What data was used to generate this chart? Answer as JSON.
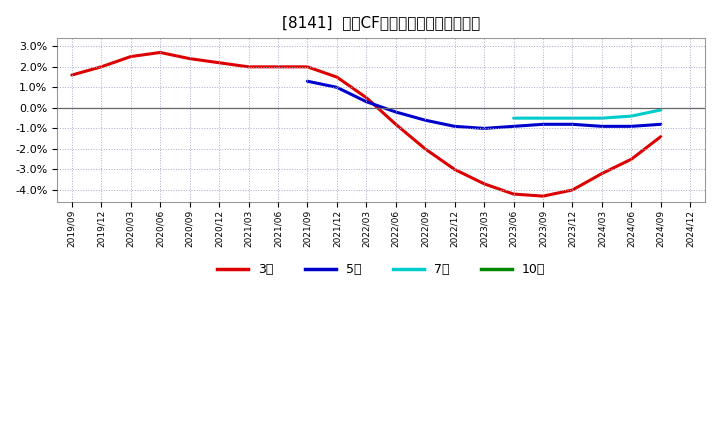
{
  "title": "[8141]  営業CFマージンの平均値の推移",
  "ylim": [
    -0.046,
    0.034
  ],
  "yticks": [
    -0.04,
    -0.03,
    -0.02,
    -0.01,
    0.0,
    0.01,
    0.02,
    0.03
  ],
  "background_color": "#ffffff",
  "plot_bg_color": "#ffffff",
  "grid_color": "#aaaacc",
  "series": {
    "3year": {
      "color": "#dd0000",
      "label": "3年",
      "points": [
        [
          0,
          0.016
        ],
        [
          1,
          0.02
        ],
        [
          2,
          0.025
        ],
        [
          3,
          0.027
        ],
        [
          4,
          0.024
        ],
        [
          5,
          0.022
        ],
        [
          6,
          0.02
        ],
        [
          7,
          0.02
        ],
        [
          8,
          0.02
        ],
        [
          9,
          0.015
        ],
        [
          10,
          0.005
        ],
        [
          11,
          -0.008
        ],
        [
          12,
          -0.02
        ],
        [
          13,
          -0.03
        ],
        [
          14,
          -0.037
        ],
        [
          15,
          -0.042
        ],
        [
          16,
          -0.043
        ],
        [
          17,
          -0.04
        ],
        [
          18,
          -0.032
        ],
        [
          19,
          -0.025
        ],
        [
          20,
          -0.014
        ]
      ]
    },
    "5year": {
      "color": "#0000cc",
      "label": "5年",
      "points": [
        [
          8,
          0.013
        ],
        [
          9,
          0.01
        ],
        [
          10,
          0.003
        ],
        [
          11,
          -0.002
        ],
        [
          12,
          -0.006
        ],
        [
          13,
          -0.009
        ],
        [
          14,
          -0.01
        ],
        [
          15,
          -0.009
        ],
        [
          16,
          -0.008
        ],
        [
          17,
          -0.008
        ],
        [
          18,
          -0.009
        ],
        [
          19,
          -0.009
        ],
        [
          20,
          -0.008
        ]
      ]
    },
    "7year": {
      "color": "#00cccc",
      "label": "7年",
      "points": [
        [
          15,
          -0.005
        ],
        [
          16,
          -0.005
        ],
        [
          17,
          -0.005
        ],
        [
          18,
          -0.005
        ],
        [
          19,
          -0.004
        ],
        [
          20,
          -0.001
        ]
      ]
    },
    "10year": {
      "color": "#008800",
      "label": "10年",
      "points": []
    }
  },
  "xticklabels": [
    "2019/09",
    "2019/12",
    "2020/03",
    "2020/06",
    "2020/09",
    "2020/12",
    "2021/03",
    "2021/06",
    "2021/09",
    "2021/12",
    "2022/03",
    "2022/06",
    "2022/09",
    "2022/12",
    "2023/03",
    "2023/06",
    "2023/09",
    "2023/12",
    "2024/03",
    "2024/06",
    "2024/09",
    "2024/12"
  ]
}
